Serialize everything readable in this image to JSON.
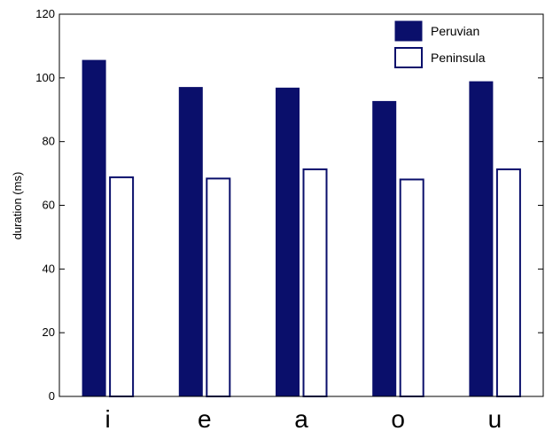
{
  "chart_data": {
    "type": "bar",
    "categories": [
      "i",
      "e",
      "a",
      "o",
      "u"
    ],
    "series": [
      {
        "name": "Peruvian",
        "values": [
          105.5,
          97,
          96.8,
          92.6,
          98.8
        ],
        "color": "#0a0f6b",
        "filled": true
      },
      {
        "name": "Peninsula",
        "values": [
          68.8,
          68.4,
          71.3,
          68.1,
          71.3
        ],
        "color": "#0a0f6b",
        "filled": false
      }
    ],
    "title": "",
    "xlabel": "",
    "ylabel": "duration (ms)",
    "ylim": [
      0,
      120
    ],
    "yticks": [
      0,
      20,
      40,
      60,
      80,
      100,
      120
    ],
    "grid": false,
    "legend_position": "top-right"
  }
}
